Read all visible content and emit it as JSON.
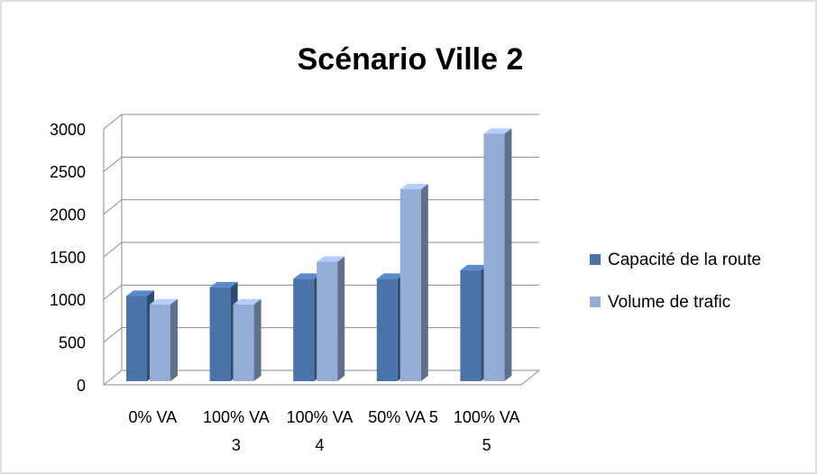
{
  "chart_data": {
    "type": "bar3d",
    "title": "Scénario Ville 2",
    "categories": [
      "0% VA",
      "100% VA 3",
      "100% VA 4",
      "50% VA 5",
      "100% VA 5"
    ],
    "series": [
      {
        "name": "Capacité de la route",
        "color": "#4a73a8",
        "values": [
          1000,
          1100,
          1200,
          1200,
          1300
        ]
      },
      {
        "name": "Volume de trafic",
        "color": "#95acd4",
        "values": [
          900,
          900,
          1400,
          2250,
          2900
        ]
      }
    ],
    "ylim": [
      0,
      3000
    ],
    "yticks": [
      0,
      500,
      1000,
      1500,
      2000,
      2500,
      3000
    ],
    "grid": true,
    "legend": "right"
  }
}
